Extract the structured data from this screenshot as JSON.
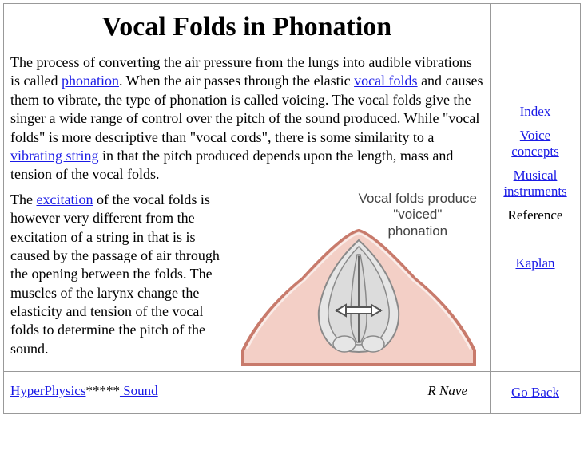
{
  "title": "Vocal Folds in Phonation",
  "para1": {
    "t1": "The process of converting the air pressure from the lungs into audible vibrations is called ",
    "link1": "phonation",
    "t2": ". When the air passes through the elastic ",
    "link2": "vocal folds",
    "t3": " and causes them to vibrate, the type of phonation is called voicing. The vocal folds give the singer a wide range of control over the pitch of the sound produced. While \"vocal folds\" is more descriptive than \"vocal cords\", there is some similarity to a ",
    "link3": "vibrating string",
    "t4": " in that the pitch produced depends upon the length, mass and tension of the vocal folds."
  },
  "para2": {
    "t1": "The ",
    "link1": "excitation",
    "t2": " of the vocal folds is however very different from the excitation of a string in that is is caused by the passage of air through the opening between the folds. The muscles of the larynx change the elasticity and tension of the vocal folds to determine the pitch of the sound."
  },
  "figure": {
    "label_l1": "Vocal folds produce",
    "label_l2": "\"voiced\"",
    "label_l3": "phonation",
    "colors": {
      "skin": "#f3cfc6",
      "outline": "#c87a6b",
      "cartilage_fill": "#e6e6e6",
      "cartilage_line": "#8a8a8a",
      "fold": "#d8d8d8",
      "arrow": "#ffffff",
      "arrow_line": "#555555"
    }
  },
  "side": {
    "index": "Index",
    "voice": "Voice concepts",
    "musical": "Musical instruments",
    "ref_label": "Reference",
    "ref_link": "Kaplan"
  },
  "footer": {
    "hp": "HyperPhysics",
    "stars": "*****",
    "sound": " Sound",
    "author": "R Nave",
    "goback": "Go Back"
  }
}
